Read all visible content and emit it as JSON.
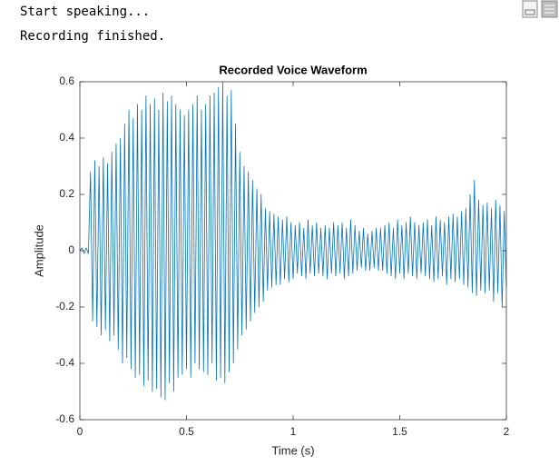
{
  "console_lines": [
    "Start speaking...",
    "Recording finished."
  ],
  "chart_data": {
    "type": "line",
    "title": "Recorded Voice Waveform",
    "x_label": "Time (s)",
    "y_label": "Amplitude",
    "xlim": [
      0,
      2
    ],
    "ylim": [
      -0.6,
      0.6
    ],
    "xticks": [
      0,
      0.5,
      1,
      1.5,
      2
    ],
    "yticks": [
      -0.6,
      -0.4,
      -0.2,
      0,
      0.2,
      0.4,
      0.6
    ],
    "grid": false,
    "x": [
      0,
      0.01,
      0.02,
      0.03,
      0.04,
      0.05,
      0.06,
      0.07,
      0.08,
      0.09,
      0.1,
      0.11,
      0.12,
      0.13,
      0.14,
      0.15,
      0.16,
      0.17,
      0.18,
      0.19,
      0.2,
      0.21,
      0.22,
      0.23,
      0.24,
      0.25,
      0.26,
      0.27,
      0.28,
      0.29,
      0.3,
      0.31,
      0.32,
      0.33,
      0.34,
      0.35,
      0.36,
      0.37,
      0.38,
      0.39,
      0.4,
      0.41,
      0.42,
      0.43,
      0.44,
      0.45,
      0.46,
      0.47,
      0.48,
      0.49,
      0.5,
      0.51,
      0.52,
      0.53,
      0.54,
      0.55,
      0.56,
      0.57,
      0.58,
      0.59,
      0.6,
      0.61,
      0.62,
      0.63,
      0.64,
      0.65,
      0.66,
      0.67,
      0.68,
      0.69,
      0.7,
      0.71,
      0.72,
      0.73,
      0.74,
      0.75,
      0.76,
      0.77,
      0.78,
      0.79,
      0.8,
      0.81,
      0.82,
      0.83,
      0.84,
      0.85,
      0.86,
      0.87,
      0.88,
      0.89,
      0.9,
      0.91,
      0.92,
      0.93,
      0.94,
      0.95,
      0.96,
      0.97,
      0.98,
      0.99,
      1,
      1.01,
      1.02,
      1.03,
      1.04,
      1.05,
      1.06,
      1.07,
      1.08,
      1.09,
      1.1,
      1.11,
      1.12,
      1.13,
      1.14,
      1.15,
      1.16,
      1.17,
      1.18,
      1.19,
      1.2,
      1.21,
      1.22,
      1.23,
      1.24,
      1.25,
      1.26,
      1.27,
      1.28,
      1.29,
      1.3,
      1.31,
      1.32,
      1.33,
      1.34,
      1.35,
      1.36,
      1.37,
      1.38,
      1.39,
      1.4,
      1.41,
      1.42,
      1.43,
      1.44,
      1.45,
      1.46,
      1.47,
      1.48,
      1.49,
      1.5,
      1.51,
      1.52,
      1.53,
      1.54,
      1.55,
      1.56,
      1.57,
      1.58,
      1.59,
      1.6,
      1.61,
      1.62,
      1.63,
      1.64,
      1.65,
      1.66,
      1.67,
      1.68,
      1.69,
      1.7,
      1.71,
      1.72,
      1.73,
      1.74,
      1.75,
      1.76,
      1.77,
      1.78,
      1.79,
      1.8,
      1.81,
      1.82,
      1.83,
      1.84,
      1.85,
      1.86,
      1.87,
      1.88,
      1.89,
      1.9,
      1.91,
      1.92,
      1.93,
      1.94,
      1.95,
      1.96,
      1.97,
      1.98,
      1.99,
      2
    ],
    "series": [
      {
        "color": "#0072bd",
        "values": [
          0,
          0.01,
          -0.01,
          0.01,
          -0.01,
          0.28,
          -0.25,
          0.32,
          -0.27,
          0.3,
          -0.3,
          0.33,
          -0.28,
          0.31,
          -0.32,
          0.35,
          -0.3,
          0.38,
          -0.35,
          0.4,
          -0.4,
          0.45,
          -0.38,
          0.5,
          -0.42,
          0.47,
          -0.45,
          0.52,
          -0.44,
          0.5,
          -0.48,
          0.55,
          -0.46,
          0.52,
          -0.5,
          0.54,
          -0.49,
          0.5,
          -0.52,
          0.56,
          -0.53,
          0.53,
          -0.47,
          0.55,
          -0.5,
          0.52,
          -0.45,
          0.5,
          -0.44,
          0.48,
          -0.42,
          0.5,
          -0.45,
          0.52,
          -0.4,
          0.55,
          -0.42,
          0.5,
          -0.43,
          0.52,
          -0.44,
          0.55,
          -0.4,
          0.56,
          -0.46,
          0.58,
          -0.45,
          0.6,
          -0.47,
          0.55,
          -0.43,
          0.57,
          -0.4,
          0.45,
          -0.35,
          0.35,
          -0.3,
          0.3,
          -0.28,
          0.28,
          -0.25,
          0.25,
          -0.22,
          0.22,
          -0.2,
          0.2,
          -0.18,
          0.15,
          -0.14,
          0.14,
          -0.13,
          0.13,
          -0.12,
          0.12,
          -0.12,
          0.11,
          -0.1,
          0.12,
          -0.11,
          0.1,
          -0.1,
          0.09,
          -0.08,
          0.1,
          -0.09,
          0.08,
          -0.1,
          0.11,
          -0.08,
          0.09,
          -0.09,
          0.1,
          -0.08,
          0.08,
          -0.09,
          0.09,
          -0.1,
          0.08,
          -0.08,
          0.1,
          -0.09,
          0.09,
          -0.08,
          0.1,
          -0.1,
          0.08,
          -0.09,
          0.11,
          -0.08,
          0.09,
          -0.07,
          0.07,
          -0.06,
          0.08,
          -0.07,
          0.06,
          -0.07,
          0.07,
          -0.06,
          0.08,
          -0.07,
          0.08,
          -0.07,
          0.09,
          -0.08,
          0.1,
          -0.09,
          0.08,
          -0.1,
          0.11,
          -0.08,
          0.09,
          -0.1,
          0.1,
          -0.08,
          0.12,
          -0.09,
          0.1,
          -0.1,
          0.09,
          -0.08,
          0.1,
          -0.09,
          0.11,
          -0.1,
          0.09,
          -0.11,
          0.12,
          -0.1,
          0.11,
          -0.09,
          0.1,
          -0.12,
          0.12,
          -0.1,
          0.13,
          -0.11,
          0.12,
          -0.1,
          0.14,
          -0.12,
          0.15,
          -0.13,
          0.2,
          -0.15,
          0.25,
          -0.16,
          0.18,
          -0.14,
          0.16,
          -0.15,
          0.17,
          -0.14,
          0.15,
          -0.18,
          0.18,
          -0.15,
          0.16,
          -0.2,
          0.14,
          -0.13
        ]
      }
    ]
  }
}
